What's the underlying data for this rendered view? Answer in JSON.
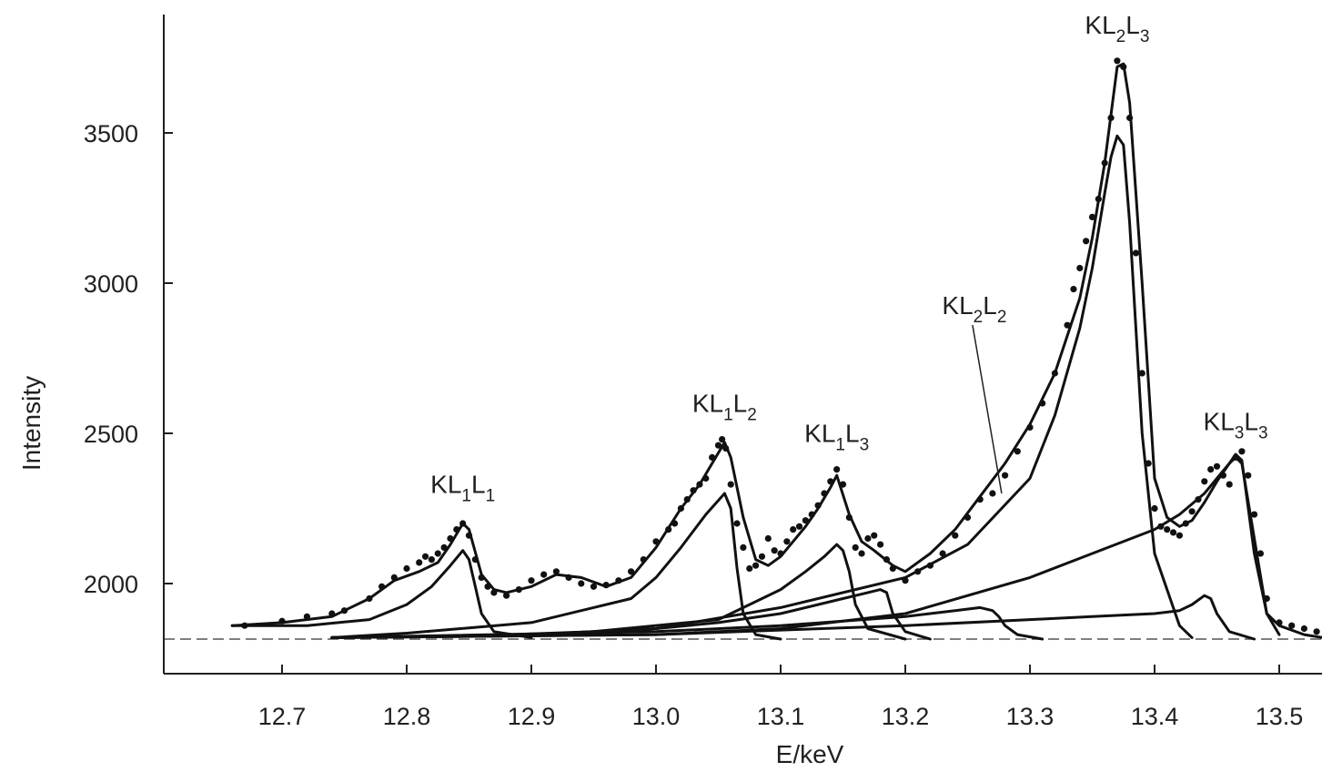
{
  "chart_data": {
    "type": "line",
    "title": "",
    "xlabel": "E/keV",
    "ylabel": "Intensity",
    "xlim": [
      12.62,
      13.55
    ],
    "ylim": [
      1700,
      3900
    ],
    "xticks": [
      12.7,
      12.8,
      12.9,
      13.0,
      13.1,
      13.2,
      13.3,
      13.4,
      13.5
    ],
    "xtick_labels": [
      "12.7",
      "12.8",
      "12.9",
      "13.0",
      "13.1",
      "13.2",
      "13.3",
      "13.4",
      "13.5"
    ],
    "yticks": [
      2000,
      2500,
      3000,
      3500
    ],
    "ytick_labels": [
      "2000",
      "2500",
      "3000",
      "3500"
    ],
    "baseline": 1815,
    "grid": false,
    "peak_labels": [
      {
        "id": "kl1l1",
        "base": "KL",
        "parts": [
          [
            "1",
            "L"
          ],
          [
            "1",
            ""
          ]
        ],
        "x": 12.845,
        "y": 2210
      },
      {
        "id": "kl1l2",
        "base": "KL",
        "parts": [
          [
            "1",
            "L"
          ],
          [
            "2",
            ""
          ]
        ],
        "x": 13.055,
        "y": 2480
      },
      {
        "id": "kl1l3",
        "base": "KL",
        "parts": [
          [
            "1",
            "L"
          ],
          [
            "3",
            ""
          ]
        ],
        "x": 13.145,
        "y": 2380
      },
      {
        "id": "kl2l2",
        "base": "KL",
        "parts": [
          [
            "2",
            "L"
          ],
          [
            "2",
            ""
          ]
        ],
        "x": 13.27,
        "y": 2300
      },
      {
        "id": "kl2l3",
        "base": "KL",
        "parts": [
          [
            "2",
            "L"
          ],
          [
            "3",
            ""
          ]
        ],
        "x": 13.37,
        "y": 3740
      },
      {
        "id": "kl3l3",
        "base": "KL",
        "parts": [
          [
            "3",
            "L"
          ],
          [
            "3",
            ""
          ]
        ],
        "x": 13.465,
        "y": 2420
      }
    ],
    "series": [
      {
        "type": "scatter",
        "x": [
          12.67,
          12.7,
          12.72,
          12.74,
          12.75,
          12.77,
          12.78,
          12.79,
          12.8,
          12.81,
          12.815,
          12.82,
          12.825,
          12.83,
          12.835,
          12.84,
          12.845,
          12.85,
          12.855,
          12.86,
          12.865,
          12.87,
          12.88,
          12.89,
          12.9,
          12.91,
          12.92,
          12.93,
          12.94,
          12.95,
          12.96,
          12.97,
          12.98,
          12.99,
          13.0,
          13.01,
          13.015,
          13.02,
          13.025,
          13.03,
          13.035,
          13.04,
          13.045,
          13.05,
          13.053,
          13.056,
          13.06,
          13.065,
          13.07,
          13.075,
          13.08,
          13.085,
          13.09,
          13.095,
          13.1,
          13.105,
          13.11,
          13.115,
          13.12,
          13.125,
          13.13,
          13.135,
          13.14,
          13.145,
          13.15,
          13.155,
          13.16,
          13.165,
          13.17,
          13.175,
          13.18,
          13.185,
          13.19,
          13.2,
          13.21,
          13.22,
          13.23,
          13.24,
          13.25,
          13.26,
          13.27,
          13.28,
          13.29,
          13.3,
          13.31,
          13.32,
          13.33,
          13.335,
          13.34,
          13.345,
          13.35,
          13.355,
          13.36,
          13.365,
          13.37,
          13.375,
          13.38,
          13.385,
          13.39,
          13.395,
          13.4,
          13.405,
          13.41,
          13.415,
          13.42,
          13.425,
          13.43,
          13.435,
          13.44,
          13.445,
          13.45,
          13.455,
          13.46,
          13.465,
          13.47,
          13.475,
          13.48,
          13.485,
          13.49,
          13.5,
          13.51,
          13.52,
          13.53,
          13.54,
          13.55
        ],
        "y": [
          1860,
          1875,
          1890,
          1900,
          1910,
          1950,
          1990,
          2020,
          2050,
          2070,
          2090,
          2080,
          2100,
          2120,
          2150,
          2180,
          2200,
          2160,
          2080,
          2020,
          1990,
          1970,
          1960,
          1980,
          2010,
          2030,
          2040,
          2020,
          2000,
          1990,
          1995,
          2010,
          2040,
          2080,
          2140,
          2180,
          2200,
          2250,
          2280,
          2310,
          2330,
          2350,
          2420,
          2460,
          2480,
          2450,
          2330,
          2200,
          2120,
          2050,
          2060,
          2090,
          2150,
          2110,
          2100,
          2140,
          2180,
          2190,
          2210,
          2230,
          2260,
          2300,
          2340,
          2380,
          2330,
          2220,
          2120,
          2100,
          2150,
          2160,
          2130,
          2080,
          2050,
          2010,
          2040,
          2060,
          2100,
          2160,
          2220,
          2280,
          2300,
          2360,
          2440,
          2520,
          2600,
          2700,
          2860,
          2980,
          3050,
          3140,
          3220,
          3280,
          3400,
          3550,
          3740,
          3720,
          3550,
          3100,
          2700,
          2400,
          2250,
          2190,
          2180,
          2170,
          2160,
          2200,
          2240,
          2280,
          2340,
          2380,
          2390,
          2360,
          2330,
          2420,
          2440,
          2360,
          2230,
          2100,
          1950,
          1870,
          1860,
          1850,
          1840,
          1830,
          1820
        ]
      },
      {
        "type": "line",
        "name": "",
        "x": [
          12.66,
          12.7,
          12.74,
          12.77,
          12.79,
          12.81,
          12.825,
          12.835,
          12.845,
          12.85,
          12.86,
          12.87,
          12.88,
          12.9,
          12.92,
          12.94,
          12.96,
          12.98,
          13.0,
          13.02,
          13.035,
          13.045,
          13.055,
          13.06,
          13.07,
          13.08,
          13.09,
          13.1,
          13.11,
          13.12,
          13.13,
          13.14,
          13.145,
          13.155,
          13.165,
          13.175,
          13.19,
          13.2,
          13.22,
          13.24,
          13.26,
          13.28,
          13.3,
          13.32,
          13.34,
          13.35,
          13.36,
          13.37,
          13.375,
          13.38,
          13.39,
          13.4,
          13.41,
          13.42,
          13.43,
          13.44,
          13.45,
          13.46,
          13.465,
          13.47,
          13.48,
          13.49,
          13.5,
          13.52,
          13.55
        ],
        "y": [
          1860,
          1870,
          1890,
          1950,
          2010,
          2040,
          2070,
          2130,
          2200,
          2180,
          2030,
          1980,
          1970,
          1990,
          2030,
          2020,
          1990,
          2020,
          2120,
          2250,
          2330,
          2400,
          2470,
          2420,
          2220,
          2080,
          2060,
          2090,
          2140,
          2190,
          2250,
          2320,
          2360,
          2230,
          2140,
          2110,
          2060,
          2040,
          2100,
          2180,
          2290,
          2400,
          2530,
          2700,
          2950,
          3150,
          3400,
          3720,
          3730,
          3600,
          3000,
          2350,
          2220,
          2190,
          2210,
          2270,
          2340,
          2400,
          2430,
          2410,
          2100,
          1900,
          1860,
          1830,
          1810
        ]
      },
      {
        "type": "line",
        "name": "",
        "x": [
          12.66,
          12.72,
          12.77,
          12.8,
          12.82,
          12.835,
          12.845,
          12.85,
          12.855,
          12.86,
          12.87,
          12.9
        ],
        "y": [
          1860,
          1860,
          1880,
          1930,
          1990,
          2060,
          2110,
          2080,
          1990,
          1900,
          1840,
          1820
        ]
      },
      {
        "type": "line",
        "name": "",
        "x": [
          12.74,
          12.8,
          12.9,
          12.98,
          13.0,
          13.02,
          13.04,
          13.055,
          13.06,
          13.065,
          13.07,
          13.08,
          13.1
        ],
        "y": [
          1820,
          1835,
          1870,
          1950,
          2020,
          2120,
          2230,
          2300,
          2250,
          2050,
          1900,
          1830,
          1815
        ]
      },
      {
        "type": "line",
        "name": "",
        "x": [
          12.74,
          12.85,
          12.95,
          13.05,
          13.1,
          13.12,
          13.135,
          13.145,
          13.15,
          13.155,
          13.16,
          13.17,
          13.2
        ],
        "y": [
          1820,
          1825,
          1840,
          1880,
          1980,
          2040,
          2090,
          2130,
          2110,
          2040,
          1930,
          1850,
          1815
        ]
      },
      {
        "type": "line",
        "name": "",
        "x": [
          12.74,
          12.9,
          13.0,
          13.05,
          13.1,
          13.15,
          13.17,
          13.18,
          13.185,
          13.19,
          13.2,
          13.22
        ],
        "y": [
          1820,
          1830,
          1850,
          1870,
          1900,
          1950,
          1970,
          1980,
          1970,
          1900,
          1840,
          1815
        ]
      },
      {
        "type": "line",
        "name": "",
        "x": [
          12.74,
          13.0,
          13.1,
          13.2,
          13.24,
          13.26,
          13.27,
          13.275,
          13.28,
          13.29,
          13.31
        ],
        "y": [
          1820,
          1840,
          1860,
          1890,
          1910,
          1920,
          1910,
          1890,
          1860,
          1830,
          1815
        ]
      },
      {
        "type": "line",
        "name": "",
        "x": [
          12.74,
          12.9,
          13.0,
          13.1,
          13.2,
          13.25,
          13.3,
          13.32,
          13.34,
          13.35,
          13.36,
          13.365,
          13.37,
          13.375,
          13.38,
          13.39,
          13.4,
          13.42,
          13.43
        ],
        "y": [
          1820,
          1830,
          1850,
          1920,
          2020,
          2130,
          2350,
          2560,
          2850,
          3050,
          3300,
          3420,
          3490,
          3460,
          3200,
          2500,
          2100,
          1860,
          1820
        ]
      },
      {
        "type": "line",
        "name": "",
        "x": [
          12.74,
          13.0,
          13.1,
          13.2,
          13.3,
          13.35,
          13.4,
          13.42,
          13.43,
          13.44,
          13.445,
          13.45,
          13.46,
          13.48
        ],
        "y": [
          1820,
          1830,
          1845,
          1860,
          1880,
          1890,
          1900,
          1910,
          1930,
          1960,
          1950,
          1900,
          1840,
          1815
        ]
      },
      {
        "type": "line",
        "name": "",
        "x": [
          12.74,
          13.0,
          13.1,
          13.2,
          13.3,
          13.35,
          13.4,
          13.42,
          13.44,
          13.45,
          13.46,
          13.465,
          13.47,
          13.48,
          13.49,
          13.5
        ],
        "y": [
          1820,
          1830,
          1850,
          1900,
          2020,
          2100,
          2180,
          2230,
          2300,
          2350,
          2400,
          2420,
          2400,
          2150,
          1900,
          1830
        ]
      }
    ]
  }
}
